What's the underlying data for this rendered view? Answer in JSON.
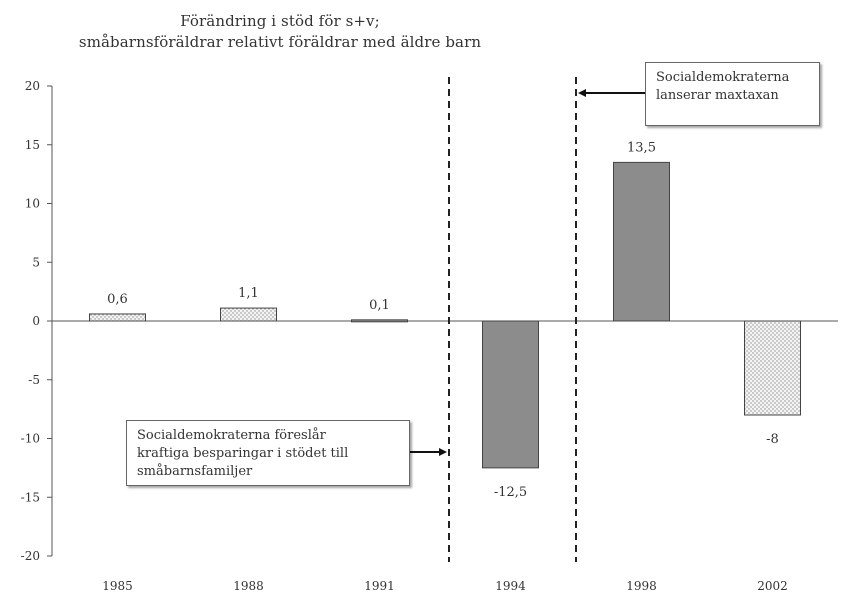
{
  "chart_data": {
    "type": "bar",
    "title": "Förändring i stöd för s+v;",
    "subtitle": "småbarnsföräldrar relativt föräldrar med äldre barn",
    "categories": [
      "1985",
      "1988",
      "1991",
      "1994",
      "1998",
      "2002"
    ],
    "values": [
      0.6,
      1.1,
      0.1,
      -12.5,
      13.5,
      -8
    ],
    "value_labels": [
      "0,6",
      "1,1",
      "0,1",
      "-12,5",
      "13,5",
      "-8"
    ],
    "bar_fills": [
      "dotted",
      "dotted",
      "solid",
      "solid",
      "solid",
      "dotted"
    ],
    "ylim": [
      -20,
      20
    ],
    "yticks": [
      20,
      15,
      10,
      5,
      0,
      -5,
      -10,
      -15,
      -20
    ],
    "grid": false,
    "annotations": [
      "Socialdemokraterna föreslår kraftiga besparingar i stödet till småbarnsfamiljer",
      "Socialdemokraterna lanserar maxtaxan"
    ]
  },
  "annotations": {
    "left": [
      "Socialdemokraterna föreslår",
      "kraftiga besparingar i stödet till",
      "småbarnsfamiljer"
    ],
    "right": [
      "Socialdemokraterna",
      "lanserar maxtaxan"
    ]
  },
  "colors": {
    "solid_bar": "#8c8c8c",
    "dotted_bar": "#f4f4f4",
    "dot": "#8a8a8a",
    "axis": "#555555"
  }
}
